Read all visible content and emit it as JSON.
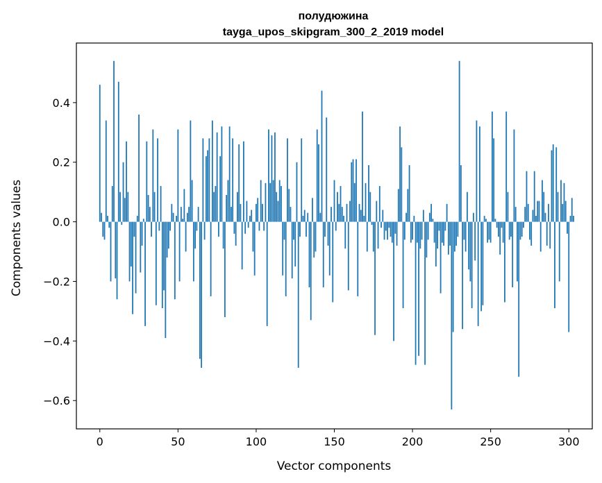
{
  "chart_data": {
    "type": "bar",
    "title_line1": "полудюжина",
    "title_line2": "tayga_upos_skipgram_300_2_2019 model",
    "xlabel": "Vector components",
    "ylabel": "Components values",
    "xlim": [
      -15,
      315
    ],
    "ylim": [
      -0.695,
      0.6
    ],
    "xticks": [
      0,
      50,
      100,
      150,
      200,
      250,
      300
    ],
    "xtick_labels": [
      "0",
      "50",
      "100",
      "150",
      "200",
      "250",
      "300"
    ],
    "yticks": [
      -0.6,
      -0.4,
      -0.2,
      0.0,
      0.2,
      0.4
    ],
    "ytick_labels": [
      "−0.6",
      "−0.4",
      "−0.2",
      "0.0",
      "0.2",
      "0.4"
    ],
    "bar_color": "#1f77b4",
    "grid": false,
    "values": [
      0.46,
      0.03,
      -0.05,
      -0.06,
      0.34,
      0.02,
      -0.02,
      -0.2,
      0.12,
      0.54,
      -0.19,
      -0.26,
      0.47,
      0.1,
      -0.01,
      0.2,
      0.08,
      0.27,
      0.1,
      -0.2,
      -0.15,
      -0.31,
      -0.05,
      -0.24,
      0.02,
      0.36,
      -0.17,
      -0.08,
      0.01,
      -0.35,
      0.27,
      0.09,
      0.05,
      -0.05,
      0.31,
      0.1,
      -0.28,
      0.28,
      -0.03,
      0.12,
      -0.29,
      -0.23,
      -0.39,
      -0.12,
      -0.09,
      -0.03,
      0.06,
      0.03,
      -0.26,
      0.02,
      0.31,
      -0.2,
      0.05,
      0.01,
      0.11,
      -0.1,
      0.03,
      0.05,
      0.34,
      0.14,
      -0.2,
      -0.09,
      -0.03,
      0.05,
      -0.46,
      -0.49,
      0.28,
      -0.06,
      0.22,
      0.24,
      0.28,
      -0.25,
      0.34,
      0.1,
      0.12,
      0.3,
      -0.05,
      0.22,
      0.32,
      -0.09,
      -0.32,
      0.09,
      0.14,
      0.32,
      0.05,
      0.28,
      -0.04,
      -0.08,
      0.1,
      0.26,
      0.06,
      -0.16,
      0.27,
      -0.04,
      0.07,
      -0.02,
      0.02,
      0.04,
      -0.1,
      -0.18,
      0.06,
      0.08,
      -0.03,
      0.14,
      0.06,
      -0.03,
      0.13,
      -0.35,
      0.31,
      0.13,
      0.29,
      0.14,
      0.3,
      0.1,
      0.07,
      0.14,
      0.12,
      -0.18,
      -0.06,
      -0.25,
      0.28,
      0.11,
      0.05,
      -0.19,
      -0.06,
      -0.15,
      0.2,
      -0.49,
      -0.05,
      0.28,
      0.02,
      0.04,
      -0.05,
      0.03,
      -0.22,
      -0.33,
      0.08,
      -0.12,
      -0.1,
      0.31,
      0.26,
      0.03,
      0.44,
      -0.22,
      -0.05,
      0.35,
      -0.08,
      -0.18,
      0.05,
      -0.27,
      0.14,
      -0.03,
      0.1,
      0.06,
      0.12,
      0.05,
      0.02,
      -0.09,
      0.06,
      -0.23,
      0.07,
      0.2,
      0.21,
      0.13,
      0.21,
      -0.25,
      0.06,
      0.04,
      0.37,
      0.02,
      0.13,
      -0.1,
      0.19,
      0.1,
      -0.01,
      -0.1,
      -0.38,
      0.07,
      -0.09,
      0.12,
      -0.02,
      0.04,
      -0.06,
      -0.03,
      -0.06,
      -0.02,
      -0.05,
      -0.07,
      -0.4,
      -0.04,
      -0.08,
      0.11,
      0.32,
      0.25,
      -0.29,
      -0.06,
      0.03,
      0.11,
      0.19,
      -0.07,
      -0.06,
      0.02,
      -0.48,
      -0.07,
      -0.45,
      -0.09,
      -0.06,
      0.04,
      -0.48,
      -0.12,
      -0.06,
      0.03,
      0.06,
      0.01,
      -0.07,
      -0.15,
      -0.09,
      -0.03,
      -0.24,
      -0.07,
      -0.08,
      -0.03,
      0.06,
      -0.11,
      -0.08,
      -0.63,
      -0.37,
      -0.1,
      -0.08,
      -0.05,
      0.54,
      0.19,
      -0.36,
      -0.06,
      -0.1,
      0.1,
      -0.16,
      -0.2,
      -0.29,
      0.03,
      -0.13,
      0.34,
      -0.35,
      0.32,
      -0.3,
      -0.28,
      0.02,
      0.01,
      -0.07,
      -0.06,
      -0.07,
      0.37,
      0.28,
      0.01,
      -0.02,
      -0.05,
      -0.11,
      -0.02,
      -0.07,
      -0.27,
      0.37,
      0.1,
      -0.06,
      -0.05,
      -0.22,
      0.31,
      0.05,
      -0.2,
      -0.52,
      -0.06,
      -0.05,
      -0.02,
      0.05,
      0.17,
      0.06,
      -0.06,
      -0.08,
      0.04,
      0.17,
      0.02,
      0.07,
      0.07,
      -0.1,
      0.14,
      0.1,
      0.03,
      -0.08,
      0.06,
      -0.09,
      0.24,
      0.26,
      -0.29,
      0.25,
      0.1,
      -0.2,
      0.14,
      0.06,
      0.13,
      0.07,
      -0.04,
      -0.37,
      0.02,
      0.08,
      0.02
    ]
  }
}
